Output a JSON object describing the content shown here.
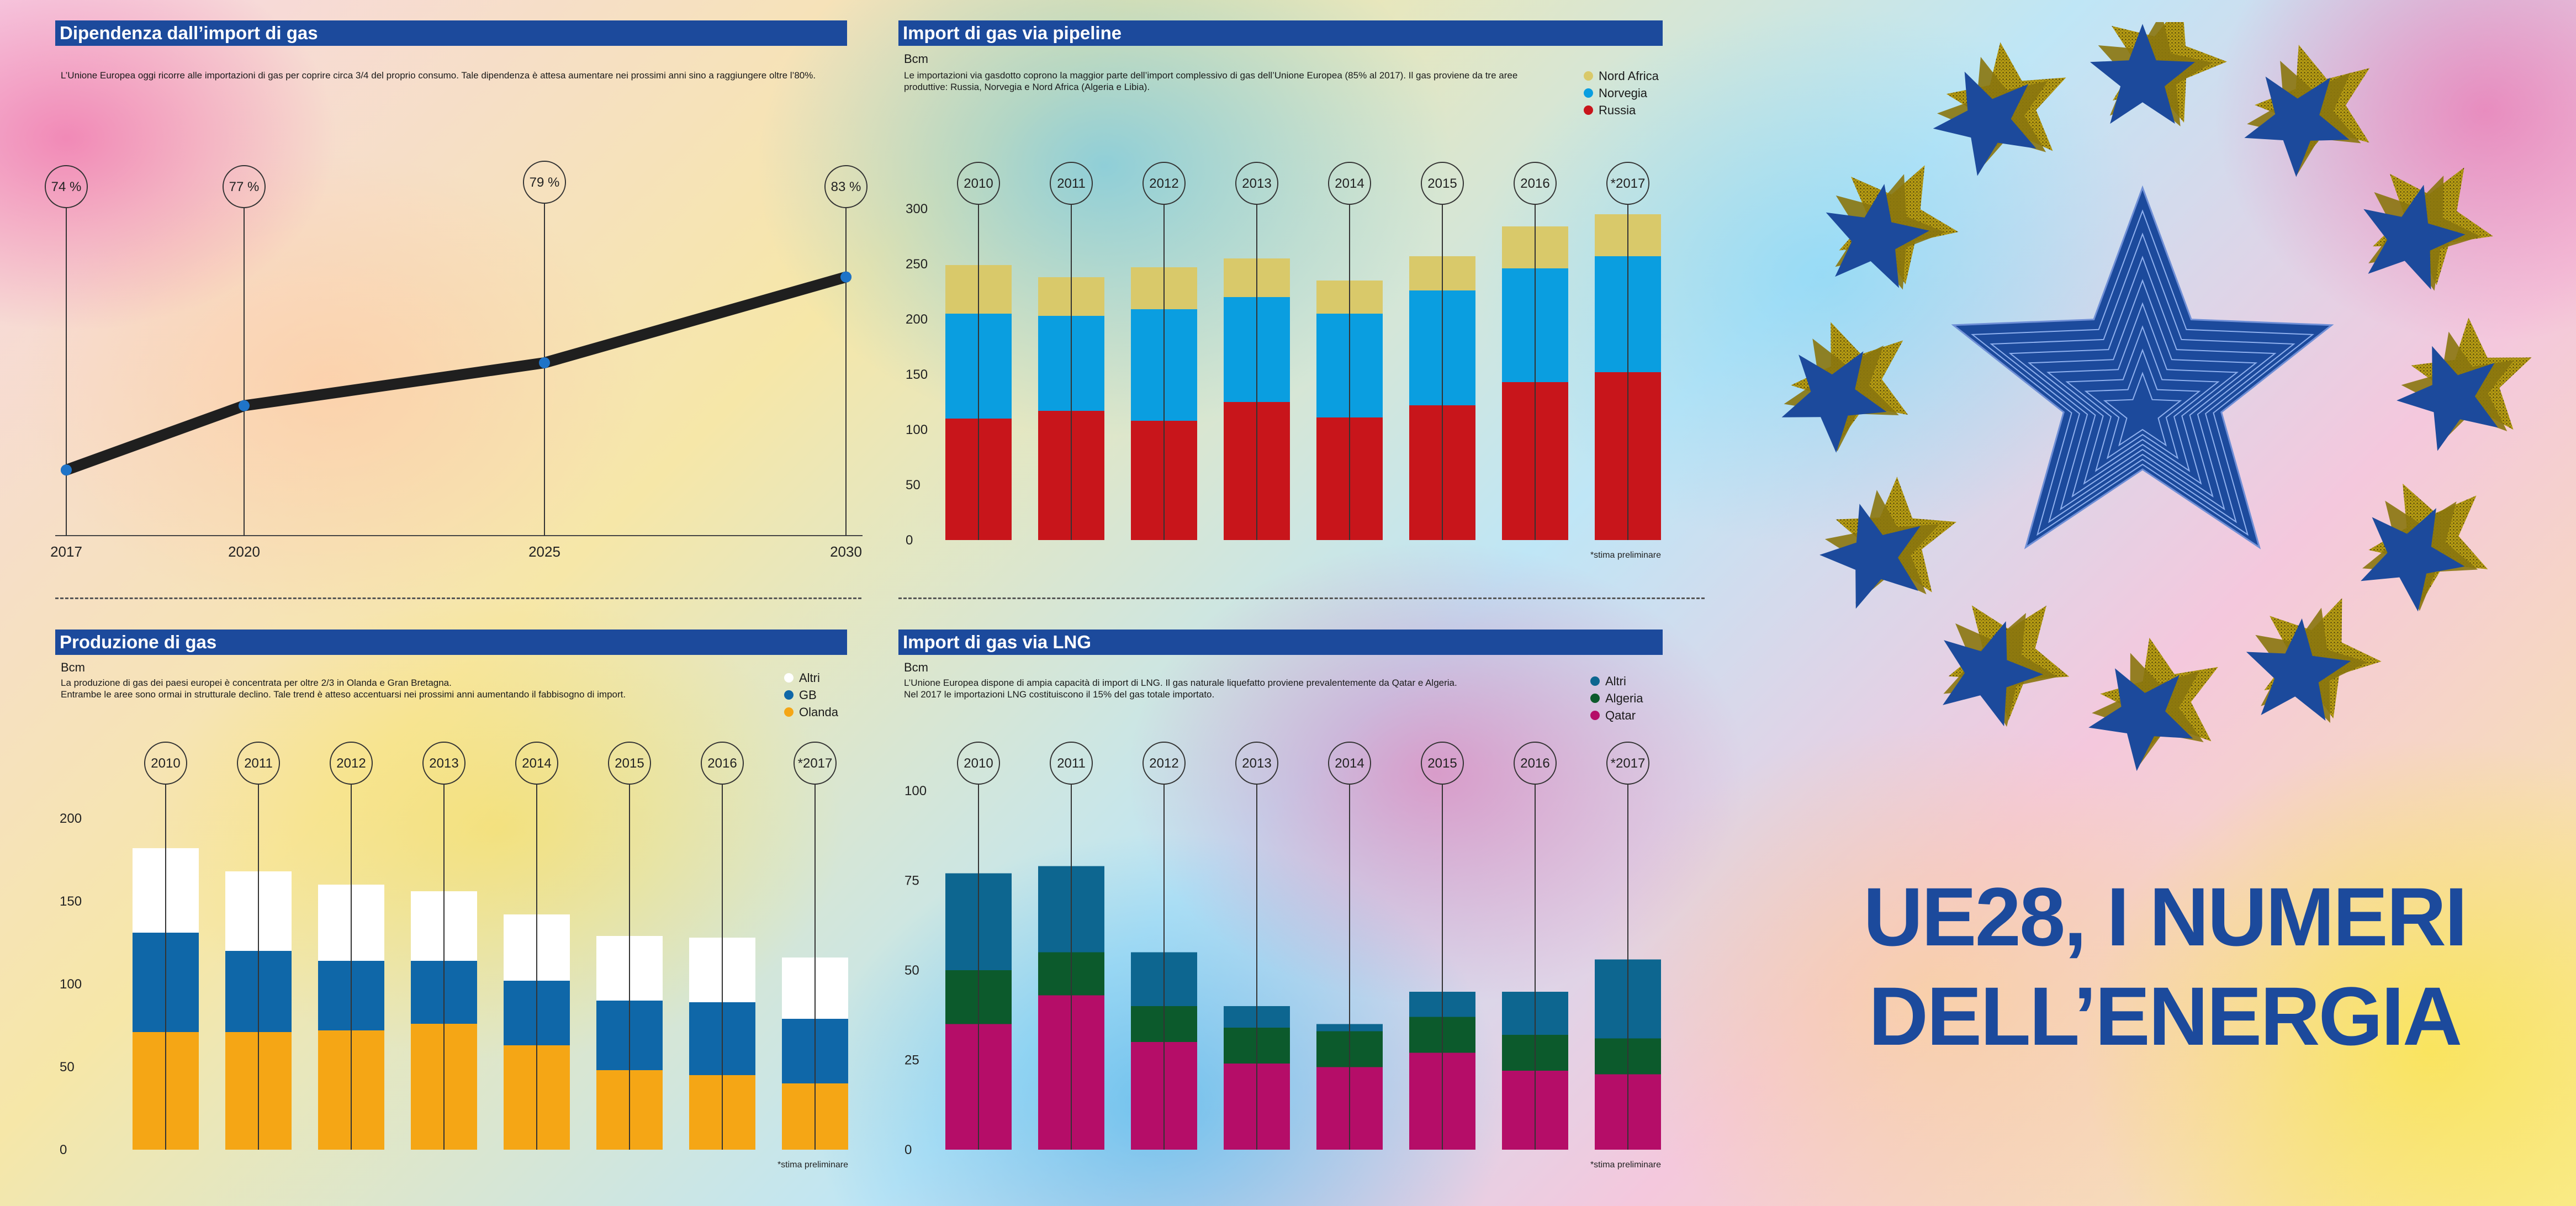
{
  "headline": {
    "line1": "UE28, I NUMERI",
    "line2": "DELL’ENERGIA"
  },
  "colors": {
    "title_bg": "#1c4a9c",
    "russia": "#c8151b",
    "norvegia": "#0a9ee0",
    "nord_africa": "#d9c96a",
    "olanda": "#f5a615",
    "gb": "#0f67a8",
    "altri_white": "#ffffff",
    "qatar": "#b50d68",
    "algeria": "#0c5a2c",
    "altri_lng": "#0d6690",
    "line": "#1f1f1f",
    "marker": "#1f74c8"
  },
  "panels": {
    "dipendenza": {
      "title": "Dipendenza dall’import di gas",
      "description": "L’Unione Europea oggi ricorre alle importazioni di gas per coprire circa 3/4 del proprio consumo. Tale dipendenza è attesa aumentare nei prossimi anni sino a raggiungere oltre l’80%."
    },
    "pipeline": {
      "title": "Import di gas via pipeline",
      "unit": "Bcm",
      "description_line1": "Le importazioni via gasdotto coprono la maggior parte dell’import complessivo di gas dell’Unione Europea (85% al 2017).  Il gas proviene da tre aree",
      "description_line2": "produttive: Russia, Norvegia e Nord Africa (Algeria e Libia).",
      "legend": [
        "Nord Africa",
        "Norvegia",
        "Russia"
      ],
      "note": "*stima preliminare"
    },
    "produzione": {
      "title": "Produzione di gas",
      "unit": "Bcm",
      "description_line1": "La produzione di gas dei paesi europei è concentrata per oltre 2/3 in Olanda e Gran Bretagna.",
      "description_line2": "Entrambe le aree sono ormai in strutturale declino. Tale trend è atteso accentuarsi nei prossimi anni aumentando il fabbisogno di import.",
      "legend": [
        "Altri",
        "GB",
        "Olanda"
      ],
      "note": "*stima preliminare"
    },
    "lng": {
      "title": "Import di gas via LNG",
      "unit": "Bcm",
      "description_line1": "L’Unione Europea dispone di ampia capacità di import di LNG. Il gas naturale liquefatto proviene prevalentemente da Qatar e Algeria.",
      "description_line2": "Nel 2017 le importazioni LNG costituiscono il 15% del gas totale importato.",
      "legend": [
        "Altri",
        "Algeria",
        "Qatar"
      ],
      "note": "*stima preliminare"
    }
  },
  "chart_data": [
    {
      "id": "dipendenza",
      "type": "line",
      "title": "Dipendenza dall’import di gas",
      "x": [
        2017,
        2020,
        2025,
        2030
      ],
      "xlabels": [
        "2017",
        "2020",
        "2025",
        "2030"
      ],
      "values": [
        74,
        77,
        79,
        83
      ],
      "labels": [
        "74 %",
        "77 %",
        "79 %",
        "83 %"
      ],
      "ylim": [
        73,
        83.3
      ]
    },
    {
      "id": "pipeline",
      "type": "bar",
      "stacked": true,
      "title": "Import di gas via pipeline",
      "ylabel": "Bcm",
      "categories": [
        "2010",
        "2011",
        "2012",
        "2013",
        "2014",
        "2015",
        "2016",
        "*2017"
      ],
      "yticks": [
        "0",
        "50",
        "100",
        "150",
        "200",
        "250",
        "300"
      ],
      "ylim": [
        0,
        300
      ],
      "series": [
        {
          "name": "Russia",
          "color_key": "russia",
          "values": [
            110,
            117,
            108,
            125,
            111,
            122,
            143,
            152
          ]
        },
        {
          "name": "Norvegia",
          "color_key": "norvegia",
          "values": [
            95,
            86,
            101,
            95,
            94,
            104,
            103,
            105
          ]
        },
        {
          "name": "Nord Africa",
          "color_key": "nord_africa",
          "values": [
            44,
            35,
            38,
            35,
            30,
            31,
            38,
            38
          ]
        }
      ]
    },
    {
      "id": "produzione",
      "type": "bar",
      "stacked": true,
      "title": "Produzione di gas",
      "ylabel": "Bcm",
      "categories": [
        "2010",
        "2011",
        "2012",
        "2013",
        "2014",
        "2015",
        "2016",
        "*2017"
      ],
      "yticks": [
        "0",
        "50",
        "100",
        "150",
        "200"
      ],
      "ylim": [
        0,
        200
      ],
      "series": [
        {
          "name": "Olanda",
          "color_key": "olanda",
          "values": [
            71,
            71,
            72,
            76,
            63,
            48,
            45,
            40
          ]
        },
        {
          "name": "GB",
          "color_key": "gb",
          "values": [
            60,
            49,
            42,
            38,
            39,
            42,
            44,
            39
          ]
        },
        {
          "name": "Altri",
          "color_key": "altri_white",
          "values": [
            51,
            48,
            46,
            42,
            40,
            39,
            39,
            37
          ]
        }
      ]
    },
    {
      "id": "lng",
      "type": "bar",
      "stacked": true,
      "title": "Import di gas via LNG",
      "ylabel": "Bcm",
      "categories": [
        "2010",
        "2011",
        "2012",
        "2013",
        "2014",
        "2015",
        "2016",
        "*2017"
      ],
      "yticks": [
        "0",
        "25",
        "50",
        "75",
        "100"
      ],
      "ylim": [
        0,
        100
      ],
      "series": [
        {
          "name": "Qatar",
          "color_key": "qatar",
          "values": [
            35,
            43,
            30,
            24,
            23,
            27,
            22,
            21
          ]
        },
        {
          "name": "Algeria",
          "color_key": "algeria",
          "values": [
            15,
            12,
            10,
            10,
            10,
            10,
            10,
            10
          ]
        },
        {
          "name": "Altri",
          "color_key": "altri_lng",
          "values": [
            27,
            24,
            15,
            6,
            2,
            7,
            12,
            22
          ]
        }
      ]
    }
  ]
}
